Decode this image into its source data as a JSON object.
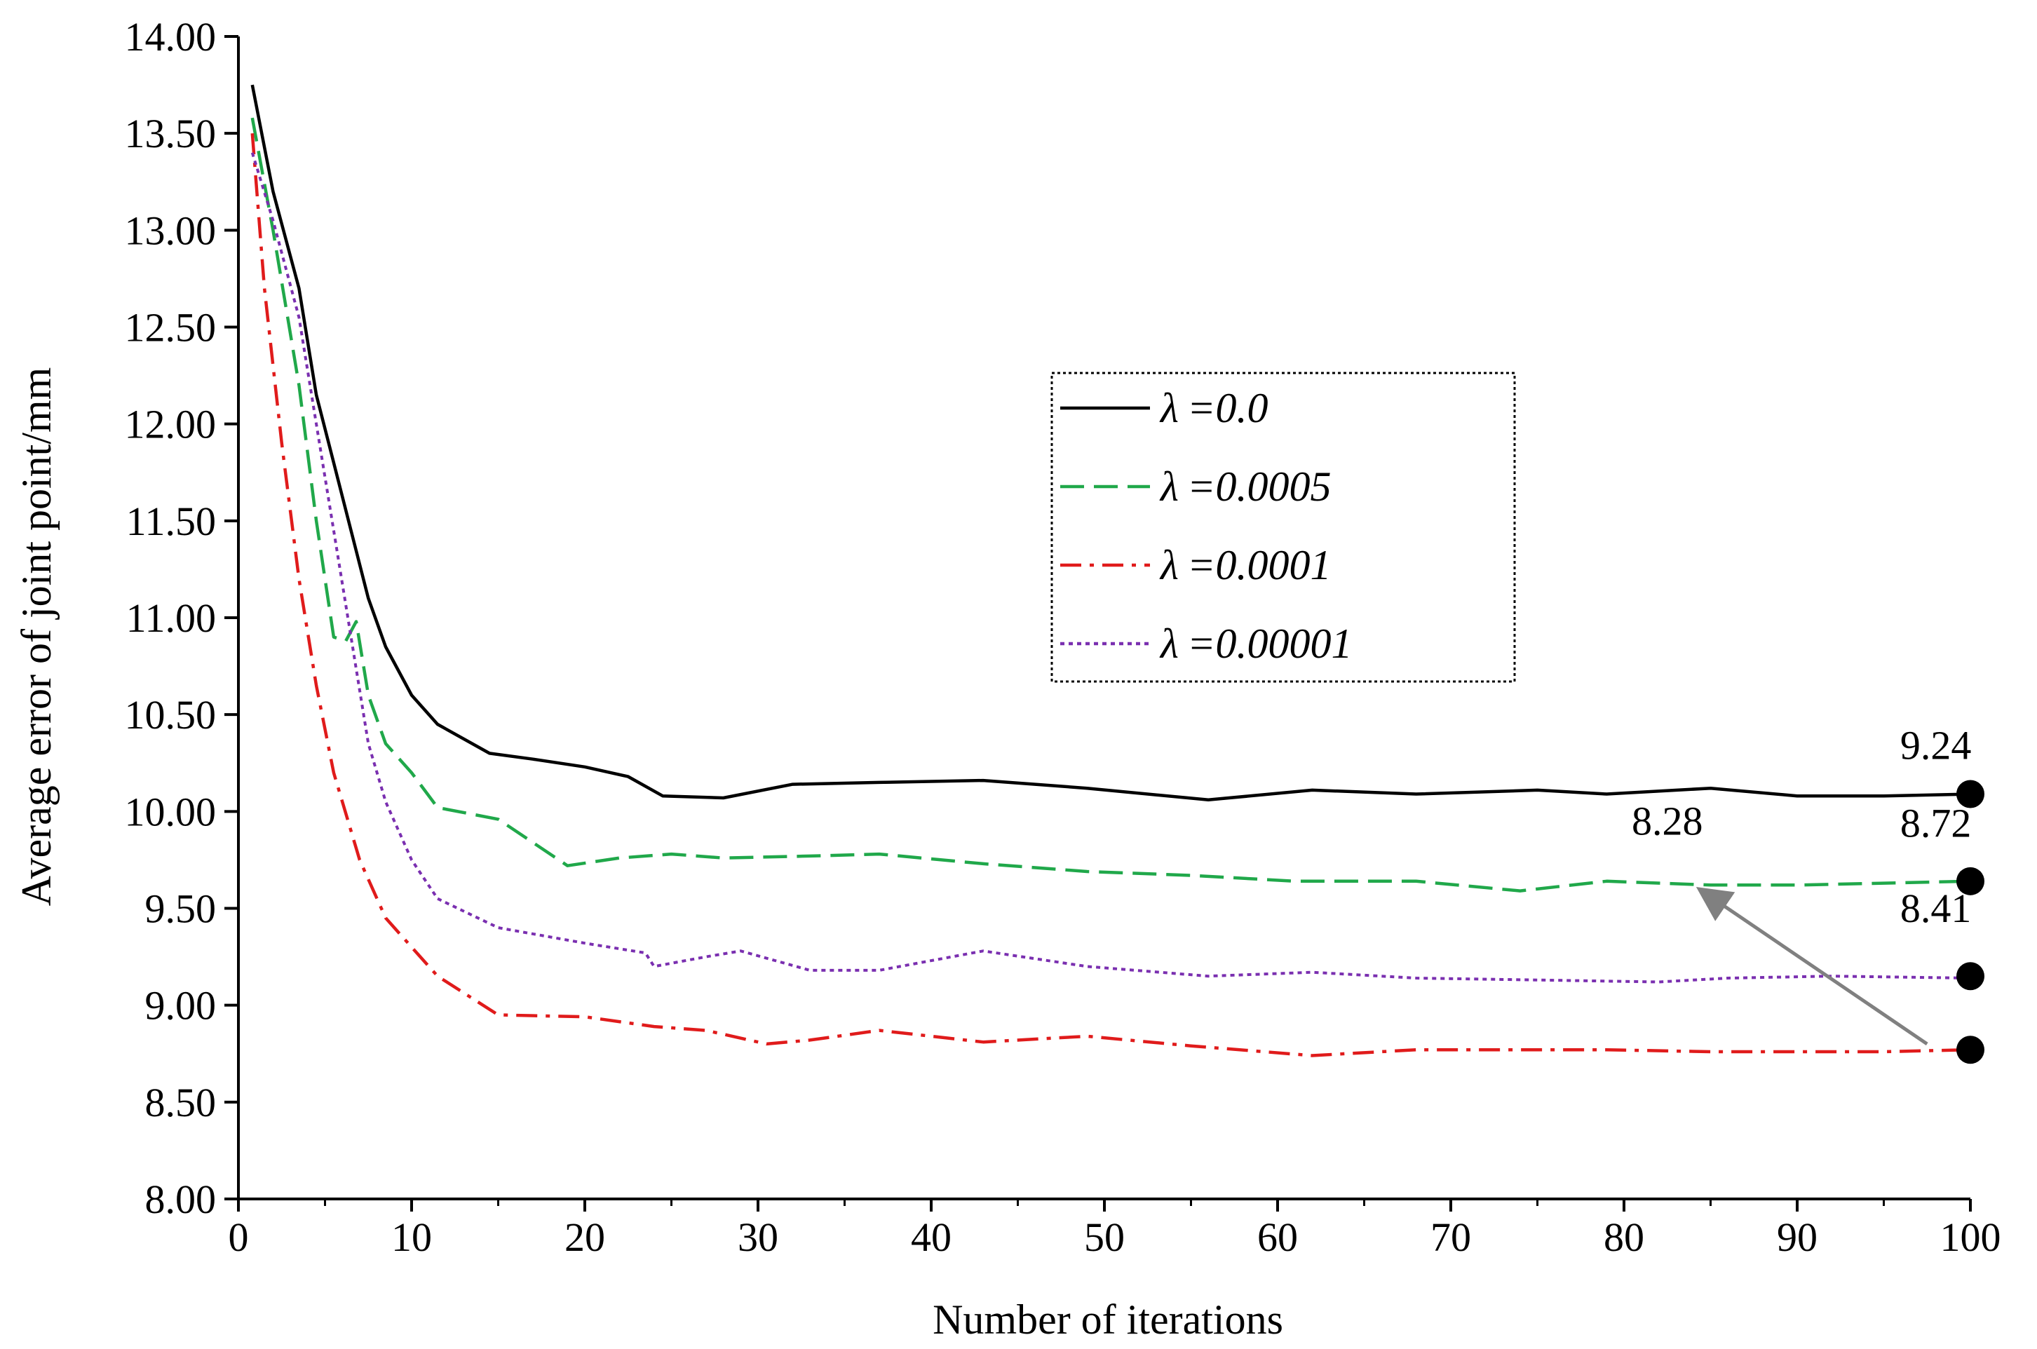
{
  "chart_data": {
    "type": "line",
    "title": "",
    "xlabel": "Number of iterations",
    "ylabel": "Average error of joint point/mm",
    "xlim": [
      0,
      100
    ],
    "ylim": [
      8.0,
      14.0
    ],
    "x_ticks": [
      0,
      10,
      20,
      30,
      40,
      50,
      60,
      70,
      80,
      90,
      100
    ],
    "x_tick_labels": [
      "0",
      "10",
      "20",
      "30",
      "40",
      "50",
      "60",
      "70",
      "80",
      "90",
      "100"
    ],
    "y_ticks": [
      8.0,
      8.5,
      9.0,
      9.5,
      10.0,
      10.5,
      11.0,
      11.5,
      12.0,
      12.5,
      13.0,
      13.5,
      14.0
    ],
    "y_tick_labels": [
      "8.00",
      "8.50",
      "9.00",
      "9.50",
      "10.00",
      "10.50",
      "11.00",
      "11.50",
      "12.00",
      "12.50",
      "13.00",
      "13.50",
      "14.00"
    ],
    "grid": false,
    "legend_position": "upper-center-right",
    "series": [
      {
        "name": "λ =0.0",
        "lambda_symbol": "λ",
        "lambda_value": "=0.0",
        "color": "#000000",
        "style": "solid",
        "x": [
          0.8,
          2,
          3.5,
          4.5,
          5.5,
          6.5,
          7.5,
          8.5,
          10,
          11.5,
          14.5,
          17,
          20,
          22.5,
          24.5,
          28,
          32,
          37,
          43,
          49,
          56,
          62,
          68,
          75,
          79,
          85,
          90,
          95,
          100
        ],
        "y": [
          13.75,
          13.2,
          12.7,
          12.15,
          11.8,
          11.45,
          11.1,
          10.85,
          10.6,
          10.45,
          10.3,
          10.27,
          10.23,
          10.18,
          10.08,
          10.07,
          10.14,
          10.15,
          10.16,
          10.12,
          10.06,
          10.11,
          10.09,
          10.11,
          10.09,
          10.12,
          10.08,
          10.08,
          10.09
        ]
      },
      {
        "name": "λ =0.0005",
        "lambda_symbol": "λ",
        "lambda_value": "=0.0005",
        "color": "#20a84a",
        "style": "dashed",
        "x": [
          0.8,
          2,
          3.5,
          4.5,
          5.5,
          6.2,
          6.8,
          7.5,
          8.5,
          10,
          11.5,
          15,
          19,
          22,
          25,
          28,
          33,
          37,
          43,
          49,
          55,
          61,
          68,
          74,
          79,
          85,
          90,
          95,
          100
        ],
        "y": [
          13.58,
          13.0,
          12.2,
          11.5,
          10.9,
          10.88,
          10.98,
          10.6,
          10.35,
          10.2,
          10.02,
          9.96,
          9.72,
          9.76,
          9.78,
          9.76,
          9.77,
          9.78,
          9.73,
          9.69,
          9.67,
          9.64,
          9.64,
          9.59,
          9.64,
          9.62,
          9.62,
          9.63,
          9.64
        ]
      },
      {
        "name": "λ =0.0001",
        "lambda_symbol": "λ",
        "lambda_value": "=0.0001",
        "color": "#e01b1b",
        "style": "dashdot",
        "x": [
          0.8,
          1.5,
          2.5,
          3.5,
          4.5,
          5.5,
          7,
          8.5,
          10,
          11.5,
          15,
          20,
          24,
          27,
          30.5,
          33,
          37,
          43,
          49,
          55,
          62,
          68,
          75,
          79,
          85,
          90,
          95,
          100
        ],
        "y": [
          13.5,
          12.7,
          11.9,
          11.2,
          10.65,
          10.2,
          9.75,
          9.45,
          9.3,
          9.15,
          8.95,
          8.94,
          8.89,
          8.87,
          8.8,
          8.82,
          8.87,
          8.81,
          8.84,
          8.79,
          8.74,
          8.77,
          8.77,
          8.77,
          8.76,
          8.76,
          8.76,
          8.77
        ]
      },
      {
        "name": "λ =0.00001",
        "lambda_symbol": "λ",
        "lambda_value": "=0.00001",
        "color": "#7a2fb0",
        "style": "dotted",
        "x": [
          0.8,
          2,
          3.5,
          4.5,
          5.5,
          6.5,
          7.5,
          8.5,
          10,
          11.5,
          15,
          20,
          23.5,
          24,
          27,
          29,
          33,
          37,
          43,
          49,
          56,
          62,
          68,
          75,
          82,
          86,
          92,
          100
        ],
        "y": [
          13.4,
          13.05,
          12.55,
          12.0,
          11.45,
          10.9,
          10.35,
          10.05,
          9.75,
          9.55,
          9.4,
          9.32,
          9.27,
          9.2,
          9.25,
          9.28,
          9.18,
          9.18,
          9.28,
          9.2,
          9.15,
          9.17,
          9.14,
          9.13,
          9.12,
          9.14,
          9.15,
          9.14
        ]
      }
    ],
    "end_markers": [
      {
        "x": 100,
        "y": 10.09,
        "color": "#000000"
      },
      {
        "x": 100,
        "y": 9.64,
        "color": "#000000"
      },
      {
        "x": 100,
        "y": 9.15,
        "color": "#000000"
      },
      {
        "x": 100,
        "y": 8.77,
        "color": "#000000"
      }
    ],
    "annotations": [
      {
        "text": "9.24",
        "x": 98,
        "y": 10.27
      },
      {
        "text": "8.72",
        "x": 98,
        "y": 9.87
      },
      {
        "text": "8.41",
        "x": 98,
        "y": 9.43
      },
      {
        "text": "8.28",
        "x": 82.5,
        "y": 9.88
      }
    ],
    "arrow": {
      "from_x": 97.5,
      "from_y": 8.8,
      "to_x": 84.5,
      "to_y": 9.59,
      "color": "#808080"
    }
  }
}
